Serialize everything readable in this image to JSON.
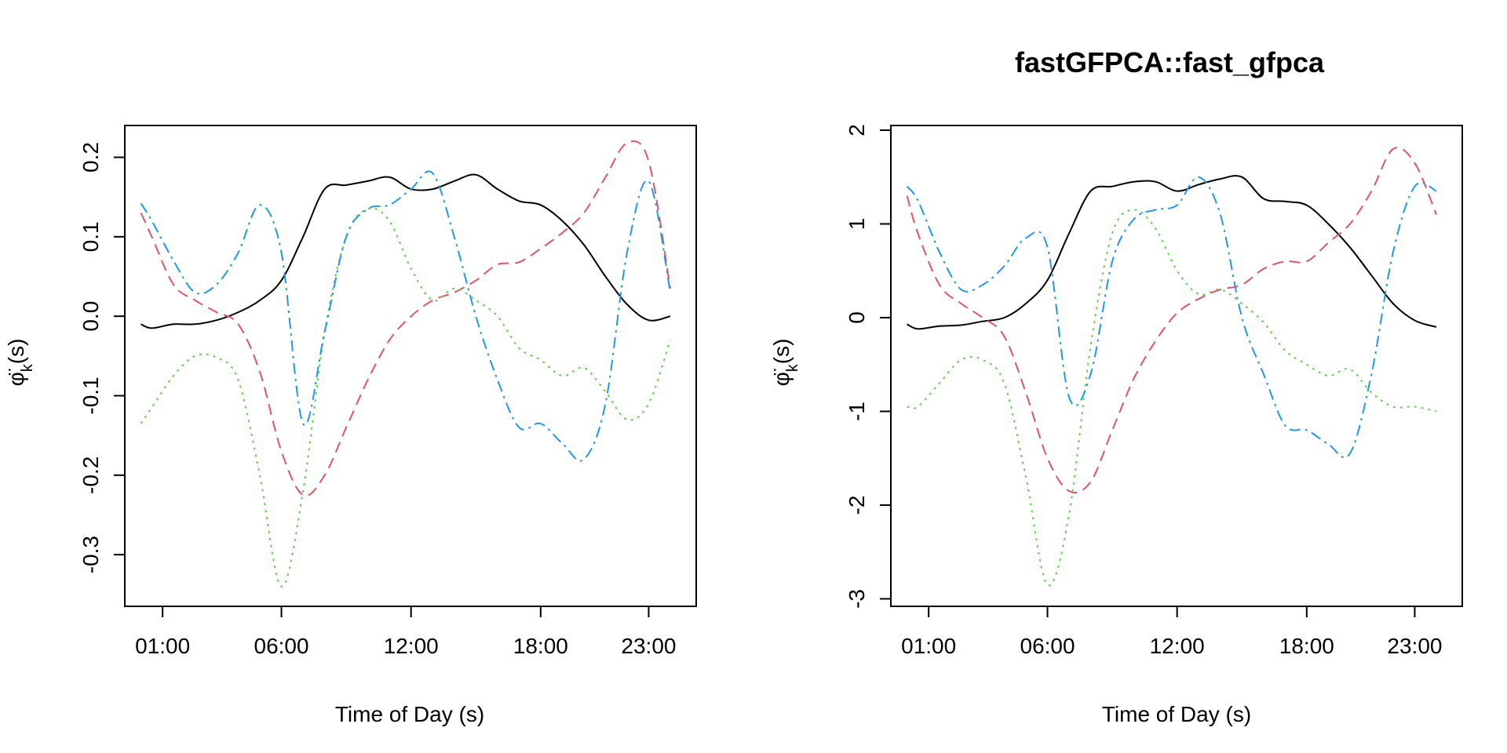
{
  "chart_data": [
    {
      "type": "line",
      "title": "",
      "xlabel": "Time of Day (s)",
      "ylabel": "φ̈k(s)",
      "ylabel_base": "φ̈",
      "ylabel_sub": "k",
      "ylabel_tail": "(s)",
      "xlim": [
        -1.25,
        25.2
      ],
      "ylim": [
        -0.365,
        0.24
      ],
      "x_ticks": [
        {
          "value": 0.5,
          "label": "01:00"
        },
        {
          "value": 6,
          "label": "06:00"
        },
        {
          "value": 12,
          "label": "12:00"
        },
        {
          "value": 18,
          "label": "18:00"
        },
        {
          "value": 23,
          "label": "23:00"
        }
      ],
      "y_ticks": [
        {
          "value": 0.2,
          "label": "0.2"
        },
        {
          "value": 0.1,
          "label": "0.1"
        },
        {
          "value": 0.0,
          "label": "0.0"
        },
        {
          "value": -0.1,
          "label": "-0.1"
        },
        {
          "value": -0.2,
          "label": "-0.2"
        },
        {
          "value": -0.3,
          "label": "-0.3"
        }
      ],
      "grid": false,
      "series": [
        {
          "color": "#000000",
          "dash": "none",
          "x": [
            -0.5,
            0,
            1,
            2,
            3,
            4,
            5,
            6,
            7,
            8,
            9,
            10,
            11,
            12,
            13,
            14,
            15,
            16,
            17,
            18,
            19,
            20,
            21,
            22,
            23,
            24
          ],
          "y": [
            -0.01,
            -0.015,
            -0.01,
            -0.01,
            -0.005,
            0.005,
            0.02,
            0.045,
            0.1,
            0.16,
            0.165,
            0.17,
            0.175,
            0.16,
            0.16,
            0.17,
            0.178,
            0.16,
            0.145,
            0.14,
            0.12,
            0.09,
            0.05,
            0.015,
            -0.005,
            0.0
          ]
        },
        {
          "color": "#DF536B",
          "dash": "14 8",
          "x": [
            -0.5,
            0,
            1,
            2,
            3,
            4,
            5,
            6,
            7,
            8,
            9,
            10,
            11,
            12,
            13,
            14,
            15,
            16,
            17,
            18,
            19,
            20,
            21,
            22,
            23,
            24
          ],
          "y": [
            0.13,
            0.1,
            0.04,
            0.02,
            0.005,
            -0.01,
            -0.07,
            -0.17,
            -0.225,
            -0.2,
            -0.14,
            -0.08,
            -0.03,
            0.0,
            0.02,
            0.03,
            0.045,
            0.065,
            0.068,
            0.085,
            0.105,
            0.13,
            0.175,
            0.218,
            0.195,
            0.035
          ]
        },
        {
          "color": "#61D04F",
          "dash": "3 6",
          "x": [
            -0.5,
            0,
            1,
            2,
            3,
            4,
            5,
            6,
            7,
            8,
            9,
            10,
            11,
            12,
            13,
            14,
            15,
            16,
            17,
            18,
            19,
            20,
            21,
            22,
            23,
            24
          ],
          "y": [
            -0.135,
            -0.115,
            -0.075,
            -0.05,
            -0.052,
            -0.08,
            -0.2,
            -0.34,
            -0.22,
            -0.02,
            0.1,
            0.135,
            0.12,
            0.06,
            0.02,
            0.035,
            0.02,
            0.0,
            -0.04,
            -0.055,
            -0.075,
            -0.065,
            -0.095,
            -0.13,
            -0.11,
            -0.03
          ]
        },
        {
          "color": "#2297E6",
          "dash": "14 6 3 6",
          "x": [
            -0.5,
            0,
            1,
            2,
            3,
            4,
            5,
            6,
            7,
            8,
            9,
            10,
            11,
            12,
            13,
            14,
            15,
            16,
            17,
            18,
            19,
            20,
            21,
            22,
            23,
            24
          ],
          "y": [
            0.142,
            0.12,
            0.07,
            0.03,
            0.04,
            0.08,
            0.14,
            0.08,
            -0.135,
            -0.02,
            0.1,
            0.135,
            0.14,
            0.16,
            0.18,
            0.1,
            0.0,
            -0.08,
            -0.14,
            -0.135,
            -0.16,
            -0.18,
            -0.11,
            0.08,
            0.17,
            0.03
          ]
        }
      ]
    },
    {
      "type": "line",
      "title": "fastGFPCA::fast_gfpca",
      "xlabel": "Time of Day (s)",
      "ylabel": "φ̈k(s)",
      "ylabel_base": "φ̈",
      "ylabel_sub": "k",
      "ylabel_tail": "(s)",
      "xlim": [
        -1.25,
        25.2
      ],
      "ylim": [
        -3.08,
        2.05
      ],
      "x_ticks": [
        {
          "value": 0.5,
          "label": "01:00"
        },
        {
          "value": 6,
          "label": "06:00"
        },
        {
          "value": 12,
          "label": "12:00"
        },
        {
          "value": 18,
          "label": "18:00"
        },
        {
          "value": 23,
          "label": "23:00"
        }
      ],
      "y_ticks": [
        {
          "value": 2,
          "label": "2"
        },
        {
          "value": 1,
          "label": "1"
        },
        {
          "value": 0,
          "label": "0"
        },
        {
          "value": -1,
          "label": "-1"
        },
        {
          "value": -2,
          "label": "-2"
        },
        {
          "value": -3,
          "label": "-3"
        }
      ],
      "grid": false,
      "series": [
        {
          "color": "#000000",
          "dash": "none",
          "x": [
            -0.5,
            0,
            1,
            2,
            3,
            4,
            5,
            6,
            7,
            8,
            9,
            10,
            11,
            12,
            13,
            14,
            15,
            16,
            17,
            18,
            19,
            20,
            21,
            22,
            23,
            24
          ],
          "y": [
            -0.07,
            -0.12,
            -0.09,
            -0.08,
            -0.04,
            0.0,
            0.15,
            0.4,
            0.9,
            1.35,
            1.4,
            1.45,
            1.45,
            1.35,
            1.42,
            1.48,
            1.5,
            1.27,
            1.24,
            1.2,
            1.0,
            0.75,
            0.45,
            0.15,
            -0.03,
            -0.1
          ]
        },
        {
          "color": "#DF536B",
          "dash": "14 8",
          "x": [
            -0.5,
            0,
            1,
            2,
            3,
            4,
            5,
            6,
            7,
            8,
            9,
            10,
            11,
            12,
            13,
            14,
            15,
            16,
            17,
            18,
            19,
            20,
            21,
            22,
            23,
            24
          ],
          "y": [
            1.3,
            0.9,
            0.35,
            0.15,
            0.0,
            -0.2,
            -0.8,
            -1.5,
            -1.85,
            -1.75,
            -1.2,
            -0.65,
            -0.25,
            0.05,
            0.2,
            0.3,
            0.35,
            0.52,
            0.6,
            0.6,
            0.8,
            1.0,
            1.35,
            1.8,
            1.65,
            1.1
          ]
        },
        {
          "color": "#61D04F",
          "dash": "3 6",
          "x": [
            -0.5,
            0,
            1,
            2,
            3,
            4,
            5,
            6,
            7,
            8,
            9,
            10,
            11,
            12,
            13,
            14,
            15,
            16,
            17,
            18,
            19,
            20,
            21,
            22,
            23,
            24
          ],
          "y": [
            -0.95,
            -0.95,
            -0.7,
            -0.45,
            -0.45,
            -0.7,
            -1.7,
            -2.85,
            -2.1,
            -0.3,
            0.9,
            1.15,
            0.95,
            0.5,
            0.25,
            0.3,
            0.15,
            -0.05,
            -0.35,
            -0.5,
            -0.62,
            -0.55,
            -0.8,
            -0.95,
            -0.95,
            -1.0
          ]
        },
        {
          "color": "#2297E6",
          "dash": "14 6 3 6",
          "x": [
            -0.5,
            0,
            1,
            2,
            3,
            4,
            5,
            6,
            7,
            8,
            9,
            10,
            11,
            12,
            13,
            14,
            15,
            16,
            17,
            18,
            19,
            20,
            21,
            22,
            23,
            24
          ],
          "y": [
            1.4,
            1.25,
            0.7,
            0.3,
            0.35,
            0.55,
            0.85,
            0.75,
            -0.85,
            -0.6,
            0.6,
            1.05,
            1.15,
            1.2,
            1.5,
            1.1,
            0.0,
            -0.6,
            -1.15,
            -1.2,
            -1.35,
            -1.45,
            -0.6,
            0.7,
            1.4,
            1.35
          ]
        }
      ]
    }
  ]
}
